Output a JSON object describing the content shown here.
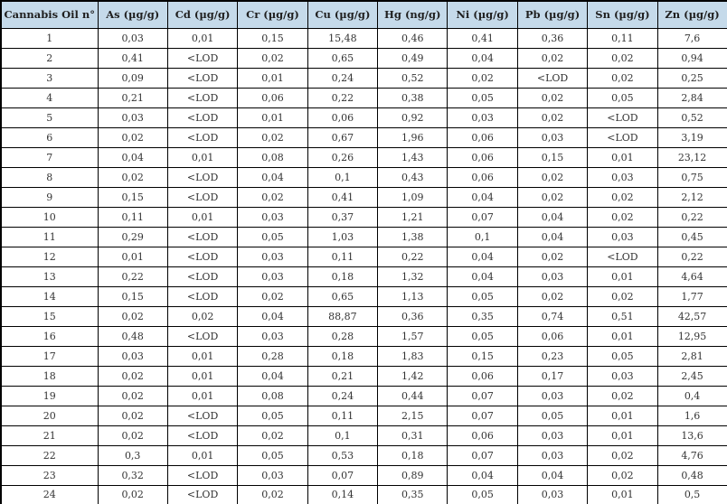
{
  "table": {
    "headers": [
      "Cannabis Oil n°",
      "As (µg/g)",
      "Cd (µg/g)",
      "Cr (µg/g)",
      "Cu (µg/g)",
      "Hg (ng/g)",
      "Ni (µg/g)",
      "Pb (µg/g)",
      "Sn (µg/g)",
      "Zn (µg/g)"
    ],
    "rows": [
      [
        "1",
        "0,03",
        "0,01",
        "0,15",
        "15,48",
        "0,46",
        "0,41",
        "0,36",
        "0,11",
        "7,6"
      ],
      [
        "2",
        "0,41",
        "<LOD",
        "0,02",
        "0,65",
        "0,49",
        "0,04",
        "0,02",
        "0,02",
        "0,94"
      ],
      [
        "3",
        "0,09",
        "<LOD",
        "0,01",
        "0,24",
        "0,52",
        "0,02",
        "<LOD",
        "0,02",
        "0,25"
      ],
      [
        "4",
        "0,21",
        "<LOD",
        "0,06",
        "0,22",
        "0,38",
        "0,05",
        "0,02",
        "0,05",
        "2,84"
      ],
      [
        "5",
        "0,03",
        "<LOD",
        "0,01",
        "0,06",
        "0,92",
        "0,03",
        "0,02",
        "<LOD",
        "0,52"
      ],
      [
        "6",
        "0,02",
        "<LOD",
        "0,02",
        "0,67",
        "1,96",
        "0,06",
        "0,03",
        "<LOD",
        "3,19"
      ],
      [
        "7",
        "0,04",
        "0,01",
        "0,08",
        "0,26",
        "1,43",
        "0,06",
        "0,15",
        "0,01",
        "23,12"
      ],
      [
        "8",
        "0,02",
        "<LOD",
        "0,04",
        "0,1",
        "0,43",
        "0,06",
        "0,02",
        "0,03",
        "0,75"
      ],
      [
        "9",
        "0,15",
        "<LOD",
        "0,02",
        "0,41",
        "1,09",
        "0,04",
        "0,02",
        "0,02",
        "2,12"
      ],
      [
        "10",
        "0,11",
        "0,01",
        "0,03",
        "0,37",
        "1,21",
        "0,07",
        "0,04",
        "0,02",
        "0,22"
      ],
      [
        "11",
        "0,29",
        "<LOD",
        "0,05",
        "1,03",
        "1,38",
        "0,1",
        "0,04",
        "0,03",
        "0,45"
      ],
      [
        "12",
        "0,01",
        "<LOD",
        "0,03",
        "0,11",
        "0,22",
        "0,04",
        "0,02",
        "<LOD",
        "0,22"
      ],
      [
        "13",
        "0,22",
        "<LOD",
        "0,03",
        "0,18",
        "1,32",
        "0,04",
        "0,03",
        "0,01",
        "4,64"
      ],
      [
        "14",
        "0,15",
        "<LOD",
        "0,02",
        "0,65",
        "1,13",
        "0,05",
        "0,02",
        "0,02",
        "1,77"
      ],
      [
        "15",
        "0,02",
        "0,02",
        "0,04",
        "88,87",
        "0,36",
        "0,35",
        "0,74",
        "0,51",
        "42,57"
      ],
      [
        "16",
        "0,48",
        "<LOD",
        "0,03",
        "0,28",
        "1,57",
        "0,05",
        "0,06",
        "0,01",
        "12,95"
      ],
      [
        "17",
        "0,03",
        "0,01",
        "0,28",
        "0,18",
        "1,83",
        "0,15",
        "0,23",
        "0,05",
        "2,81"
      ],
      [
        "18",
        "0,02",
        "0,01",
        "0,04",
        "0,21",
        "1,42",
        "0,06",
        "0,17",
        "0,03",
        "2,45"
      ],
      [
        "19",
        "0,02",
        "0,01",
        "0,08",
        "0,24",
        "0,44",
        "0,07",
        "0,03",
        "0,02",
        "0,4"
      ],
      [
        "20",
        "0,02",
        "<LOD",
        "0,05",
        "0,11",
        "2,15",
        "0,07",
        "0,05",
        "0,01",
        "1,6"
      ],
      [
        "21",
        "0,02",
        "<LOD",
        "0,02",
        "0,1",
        "0,31",
        "0,06",
        "0,03",
        "0,01",
        "13,6"
      ],
      [
        "22",
        "0,3",
        "0,01",
        "0,05",
        "0,53",
        "0,18",
        "0,07",
        "0,03",
        "0,02",
        "4,76"
      ],
      [
        "23",
        "0,32",
        "<LOD",
        "0,03",
        "0,07",
        "0,89",
        "0,04",
        "0,04",
        "0,02",
        "0,48"
      ],
      [
        "24",
        "0,02",
        "<LOD",
        "0,02",
        "0,14",
        "0,35",
        "0,05",
        "0,03",
        "0,01",
        "0,5"
      ]
    ]
  },
  "colors": {
    "header_bg": "#c5daea",
    "header_text": "#1f1f1f",
    "cell_text": "#333333",
    "border": "#000000"
  }
}
